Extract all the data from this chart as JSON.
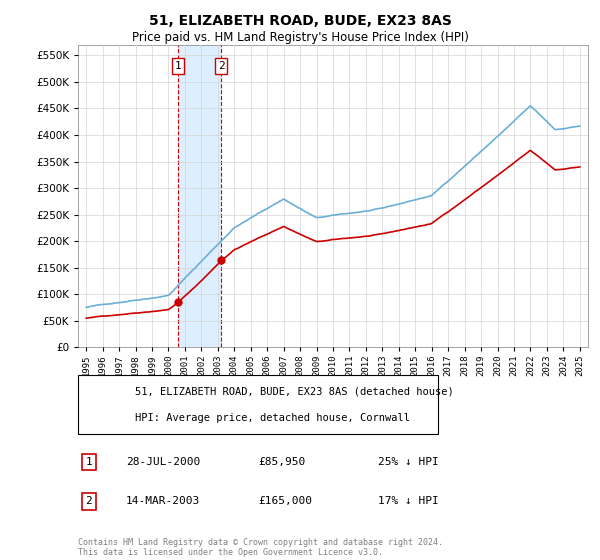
{
  "title": "51, ELIZABETH ROAD, BUDE, EX23 8AS",
  "subtitle": "Price paid vs. HM Land Registry's House Price Index (HPI)",
  "legend_line1": "51, ELIZABETH ROAD, BUDE, EX23 8AS (detached house)",
  "legend_line2": "HPI: Average price, detached house, Cornwall",
  "transaction1_label": "1",
  "transaction1_date": "28-JUL-2000",
  "transaction1_price": "£85,950",
  "transaction1_hpi": "25% ↓ HPI",
  "transaction1_year": 2000.57,
  "transaction1_value": 85950,
  "transaction2_label": "2",
  "transaction2_date": "14-MAR-2003",
  "transaction2_price": "£165,000",
  "transaction2_hpi": "17% ↓ HPI",
  "transaction2_year": 2003.2,
  "transaction2_value": 165000,
  "footnote": "Contains HM Land Registry data © Crown copyright and database right 2024.\nThis data is licensed under the Open Government Licence v3.0.",
  "hpi_color": "#6baed6",
  "price_color": "#cc0000",
  "highlight_color": "#ddeeff",
  "ylim_min": 0,
  "ylim_max": 570000
}
